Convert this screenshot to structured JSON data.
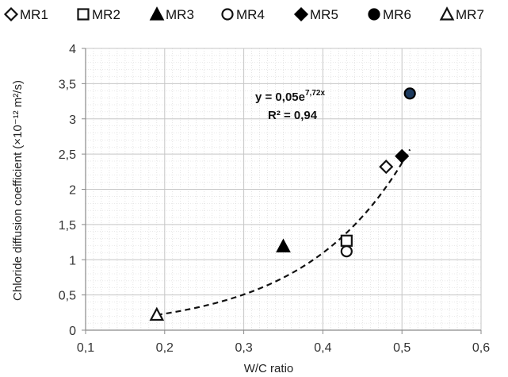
{
  "chart_data": {
    "type": "scatter",
    "xlabel": "W/C ratio",
    "ylabel": "Chloride diffusion coefficient (×10⁻¹² m²/s)",
    "xlim": [
      0.1,
      0.6
    ],
    "ylim": [
      0,
      4
    ],
    "x_ticks": [
      "0,1",
      "0,2",
      "0,3",
      "0,4",
      "0,5",
      "0,6"
    ],
    "y_ticks": [
      "0",
      "0,5",
      "1",
      "1,5",
      "2",
      "2,5",
      "3",
      "3,5",
      "4"
    ],
    "grid": true,
    "legend_position": "top",
    "series": [
      {
        "name": "MR1",
        "marker": "diamond-open",
        "color": "#111111",
        "x": [
          0.48
        ],
        "y": [
          2.32
        ]
      },
      {
        "name": "MR2",
        "marker": "square-open",
        "color": "#111111",
        "x": [
          0.43
        ],
        "y": [
          1.27
        ]
      },
      {
        "name": "MR3",
        "marker": "triangle-filled",
        "color": "#000000",
        "x": [
          0.35
        ],
        "y": [
          1.19
        ]
      },
      {
        "name": "MR4",
        "marker": "circle-open",
        "color": "#111111",
        "x": [
          0.43
        ],
        "y": [
          1.12
        ]
      },
      {
        "name": "MR5",
        "marker": "diamond-filled",
        "color": "#000000",
        "x": [
          0.5
        ],
        "y": [
          2.47
        ]
      },
      {
        "name": "MR6",
        "marker": "circle-filled",
        "color": "#1c3a5e",
        "x": [
          0.51
        ],
        "y": [
          3.36
        ]
      },
      {
        "name": "MR7",
        "marker": "triangle-open",
        "color": "#111111",
        "x": [
          0.19
        ],
        "y": [
          0.22
        ]
      }
    ],
    "trendline": {
      "a": 0.05,
      "b": 7.72,
      "x_range": [
        0.19,
        0.51
      ],
      "style": "dashed",
      "equation_prefix": "y = 0,05e",
      "equation_exponent": "7,72x",
      "r2_label": "R² = 0,94"
    }
  }
}
